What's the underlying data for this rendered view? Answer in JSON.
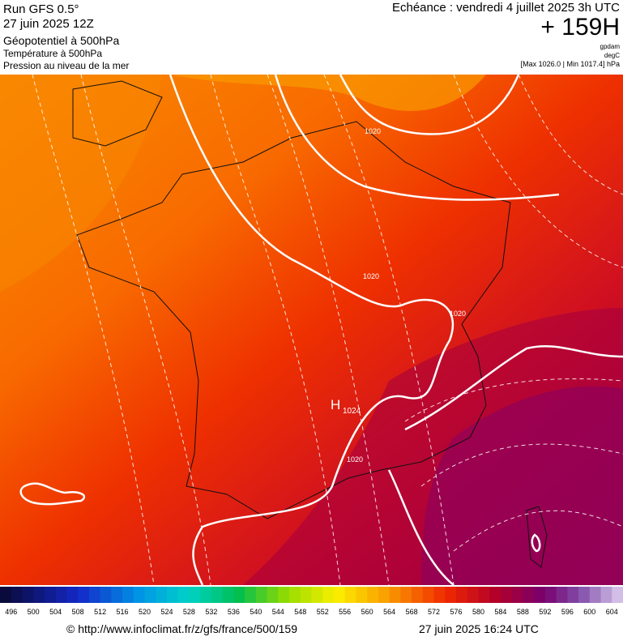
{
  "header": {
    "run": "Run GFS 0.5°",
    "date": "27 juin 2025 12Z",
    "field1": "Géopotentiel à 500hPa",
    "field2": "Température à 500hPa",
    "field3": "Pression au niveau de la mer",
    "forecast": "Echéance : vendredi 4 juillet 2025 3h UTC",
    "lead": "+ 159H",
    "unit1": "gpdam",
    "unit2": "degC",
    "range": "[Max 1026.0 | Min 1017.4] hPa"
  },
  "map": {
    "isobar_labels": [
      "1020",
      "1020",
      "1020",
      "1020"
    ],
    "high": "H",
    "high_value": "1024"
  },
  "colorbar": {
    "labels": [
      "496",
      "500",
      "504",
      "508",
      "512",
      "516",
      "520",
      "524",
      "528",
      "532",
      "536",
      "540",
      "544",
      "548",
      "552",
      "556",
      "560",
      "564",
      "568",
      "572",
      "576",
      "580",
      "584",
      "588",
      "592",
      "596",
      "600",
      "604"
    ]
  },
  "footer": {
    "url": "© http://www.infoclimat.fr/z/gfs/france/500/159",
    "timestamp": "27 juin 2025 16:24 UTC"
  }
}
